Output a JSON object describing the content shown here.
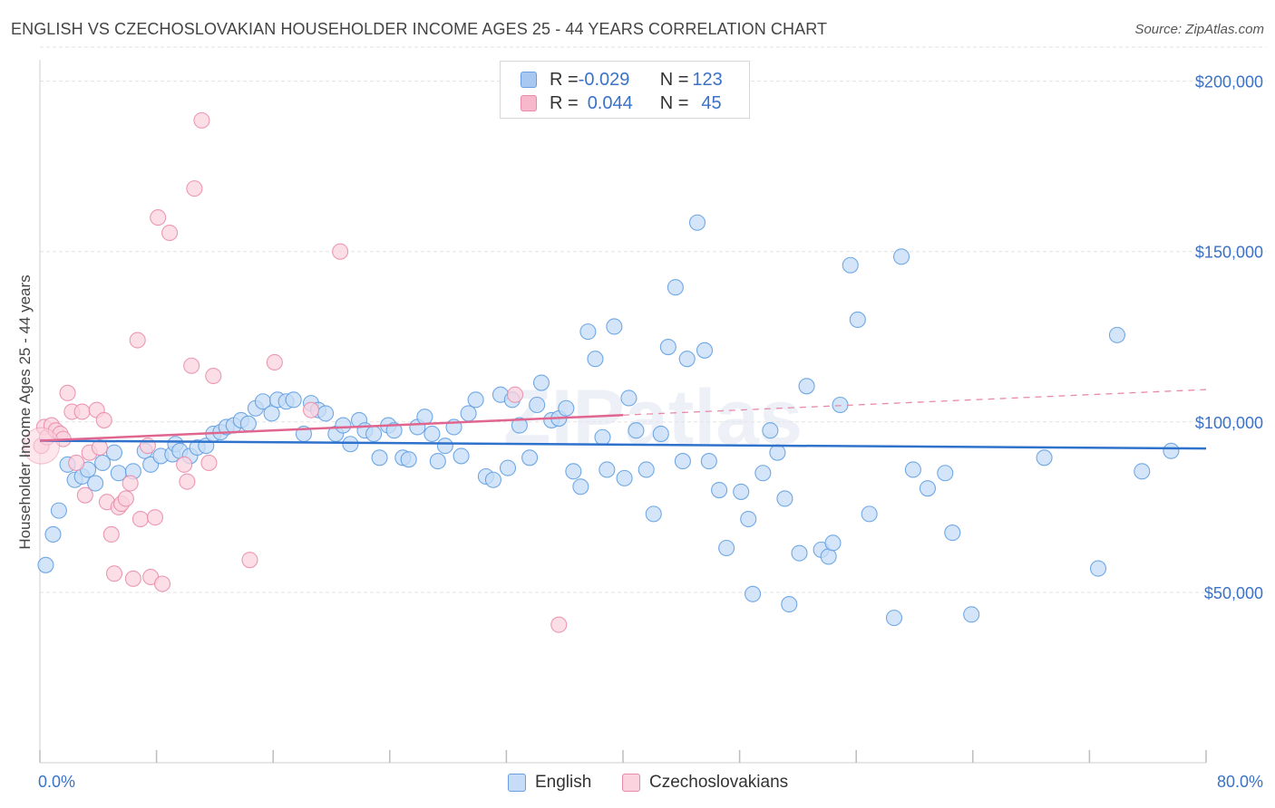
{
  "title": "ENGLISH VS CZECHOSLOVAKIAN HOUSEHOLDER INCOME AGES 25 - 44 YEARS CORRELATION CHART",
  "source": "Source: ZipAtlas.com",
  "watermark": "ZIPatlas",
  "legend": {
    "rows": [
      {
        "r_label": "R = ",
        "r_value": "-0.029",
        "n_label": "N = ",
        "n_value": "123",
        "color": "#a8c8f0",
        "border": "#6a9ee0"
      },
      {
        "r_label": "R = ",
        "r_value": "0.044",
        "n_label": "N = ",
        "n_value": "45",
        "color": "#f7b8cc",
        "border": "#e88aa8"
      }
    ]
  },
  "bottom_legend": [
    {
      "label": "English",
      "color": "#c6dcf7",
      "border": "#6a9ee0"
    },
    {
      "label": "Czechoslovakians",
      "color": "#fbd3df",
      "border": "#e88aa8"
    }
  ],
  "chart_data": {
    "type": "scatter",
    "xlabel": "",
    "ylabel": "Householder Income Ages 25 - 44 years",
    "xlim": [
      0,
      80
    ],
    "ylim": [
      0,
      210000
    ],
    "x_tick_labels": [
      "0.0%",
      "80.0%"
    ],
    "y_tick_values": [
      50000,
      100000,
      150000,
      200000
    ],
    "y_tick_labels": [
      "$50,000",
      "$100,000",
      "$150,000",
      "$200,000"
    ],
    "grid": true,
    "legend_position": "top-center",
    "series": [
      {
        "name": "English",
        "color": "#5b9be0",
        "fill": "#c6dcf7",
        "trend": {
          "x0": 0,
          "y0": 94500,
          "x1": 80,
          "y1": 92200
        },
        "points": [
          [
            0.4,
            58000
          ],
          [
            0.9,
            67000
          ],
          [
            1.3,
            74000
          ],
          [
            1.9,
            87500
          ],
          [
            2.4,
            83000
          ],
          [
            2.9,
            84000
          ],
          [
            3.3,
            86000
          ],
          [
            3.8,
            82000
          ],
          [
            4.3,
            88000
          ],
          [
            5.1,
            91000
          ],
          [
            5.4,
            85000
          ],
          [
            6.4,
            85500
          ],
          [
            7.2,
            91500
          ],
          [
            7.6,
            87500
          ],
          [
            8.3,
            90000
          ],
          [
            9.1,
            90500
          ],
          [
            9.3,
            93500
          ],
          [
            9.6,
            91500
          ],
          [
            10.3,
            90000
          ],
          [
            10.8,
            92500
          ],
          [
            11.4,
            93000
          ],
          [
            11.9,
            96500
          ],
          [
            12.4,
            97000
          ],
          [
            12.8,
            98500
          ],
          [
            13.3,
            99000
          ],
          [
            13.8,
            100500
          ],
          [
            14.3,
            99500
          ],
          [
            14.8,
            104000
          ],
          [
            15.3,
            106000
          ],
          [
            15.9,
            102500
          ],
          [
            16.3,
            106500
          ],
          [
            16.9,
            106000
          ],
          [
            17.4,
            106500
          ],
          [
            18.1,
            96500
          ],
          [
            18.6,
            105500
          ],
          [
            19.1,
            103500
          ],
          [
            19.6,
            102500
          ],
          [
            20.3,
            96500
          ],
          [
            20.8,
            99000
          ],
          [
            21.3,
            93500
          ],
          [
            21.9,
            100500
          ],
          [
            22.3,
            97500
          ],
          [
            22.9,
            96500
          ],
          [
            23.3,
            89500
          ],
          [
            23.9,
            99000
          ],
          [
            24.3,
            97500
          ],
          [
            24.9,
            89500
          ],
          [
            25.3,
            89000
          ],
          [
            25.9,
            98500
          ],
          [
            26.4,
            101500
          ],
          [
            26.9,
            96500
          ],
          [
            27.3,
            88500
          ],
          [
            27.8,
            93000
          ],
          [
            28.4,
            98500
          ],
          [
            28.9,
            90000
          ],
          [
            29.4,
            102500
          ],
          [
            29.9,
            106500
          ],
          [
            30.6,
            84000
          ],
          [
            31.1,
            83000
          ],
          [
            31.6,
            108000
          ],
          [
            32.1,
            86500
          ],
          [
            32.4,
            106500
          ],
          [
            32.9,
            99000
          ],
          [
            33.6,
            89500
          ],
          [
            34.1,
            105000
          ],
          [
            34.4,
            111500
          ],
          [
            35.1,
            100500
          ],
          [
            35.6,
            101000
          ],
          [
            36.1,
            104000
          ],
          [
            36.6,
            85500
          ],
          [
            37.1,
            81000
          ],
          [
            37.6,
            126500
          ],
          [
            38.1,
            118500
          ],
          [
            38.6,
            95500
          ],
          [
            38.9,
            86000
          ],
          [
            39.4,
            128000
          ],
          [
            40.1,
            83500
          ],
          [
            40.4,
            107000
          ],
          [
            40.9,
            97500
          ],
          [
            41.6,
            86000
          ],
          [
            42.1,
            73000
          ],
          [
            42.6,
            96500
          ],
          [
            43.1,
            122000
          ],
          [
            43.6,
            139500
          ],
          [
            44.1,
            88500
          ],
          [
            44.4,
            118500
          ],
          [
            45.1,
            158500
          ],
          [
            45.6,
            121000
          ],
          [
            45.9,
            88500
          ],
          [
            46.6,
            80000
          ],
          [
            47.1,
            63000
          ],
          [
            48.1,
            79500
          ],
          [
            48.6,
            71500
          ],
          [
            48.9,
            49500
          ],
          [
            49.6,
            85000
          ],
          [
            50.1,
            97500
          ],
          [
            50.6,
            91000
          ],
          [
            51.1,
            77500
          ],
          [
            51.4,
            46500
          ],
          [
            52.1,
            61500
          ],
          [
            52.6,
            110500
          ],
          [
            53.6,
            62500
          ],
          [
            54.1,
            60500
          ],
          [
            54.4,
            64500
          ],
          [
            54.9,
            105000
          ],
          [
            55.6,
            146000
          ],
          [
            56.1,
            130000
          ],
          [
            56.9,
            73000
          ],
          [
            58.6,
            42500
          ],
          [
            59.1,
            148500
          ],
          [
            59.9,
            86000
          ],
          [
            60.9,
            80500
          ],
          [
            62.1,
            85000
          ],
          [
            62.6,
            67500
          ],
          [
            63.9,
            43500
          ],
          [
            68.9,
            89500
          ],
          [
            72.6,
            57000
          ],
          [
            73.9,
            125500
          ],
          [
            75.6,
            85500
          ],
          [
            77.6,
            91500
          ]
        ]
      },
      {
        "name": "Czechoslovakians",
        "color": "#e888a8",
        "fill": "#fbd3df",
        "trend": {
          "x0": 0,
          "y0": 94500,
          "x1": 40,
          "y1": 102000
        },
        "trend_extension": {
          "x0": 40,
          "y0": 102000,
          "x1": 80,
          "y1": 109500
        },
        "points": [
          [
            0.1,
            93000
          ],
          [
            0.3,
            98500
          ],
          [
            0.5,
            95500
          ],
          [
            0.8,
            99000
          ],
          [
            1.1,
            97500
          ],
          [
            1.4,
            96500
          ],
          [
            1.6,
            95000
          ],
          [
            1.9,
            108500
          ],
          [
            2.2,
            103000
          ],
          [
            2.5,
            88000
          ],
          [
            2.9,
            103000
          ],
          [
            3.1,
            78500
          ],
          [
            3.4,
            91000
          ],
          [
            3.9,
            103500
          ],
          [
            4.1,
            92500
          ],
          [
            4.4,
            100500
          ],
          [
            4.6,
            76500
          ],
          [
            4.9,
            67000
          ],
          [
            5.1,
            55500
          ],
          [
            5.4,
            75000
          ],
          [
            5.6,
            76000
          ],
          [
            5.9,
            77500
          ],
          [
            6.2,
            82000
          ],
          [
            6.4,
            54000
          ],
          [
            6.7,
            124000
          ],
          [
            6.9,
            71500
          ],
          [
            7.4,
            93000
          ],
          [
            7.6,
            54500
          ],
          [
            7.9,
            72000
          ],
          [
            8.1,
            160000
          ],
          [
            8.4,
            52500
          ],
          [
            8.9,
            155500
          ],
          [
            9.9,
            87500
          ],
          [
            10.1,
            82500
          ],
          [
            10.4,
            116500
          ],
          [
            10.6,
            168500
          ],
          [
            11.1,
            188500
          ],
          [
            11.6,
            88000
          ],
          [
            11.9,
            113500
          ],
          [
            14.4,
            59500
          ],
          [
            16.1,
            117500
          ],
          [
            18.6,
            103500
          ],
          [
            20.6,
            150000
          ],
          [
            32.6,
            108000
          ],
          [
            35.6,
            40500
          ]
        ]
      }
    ]
  }
}
